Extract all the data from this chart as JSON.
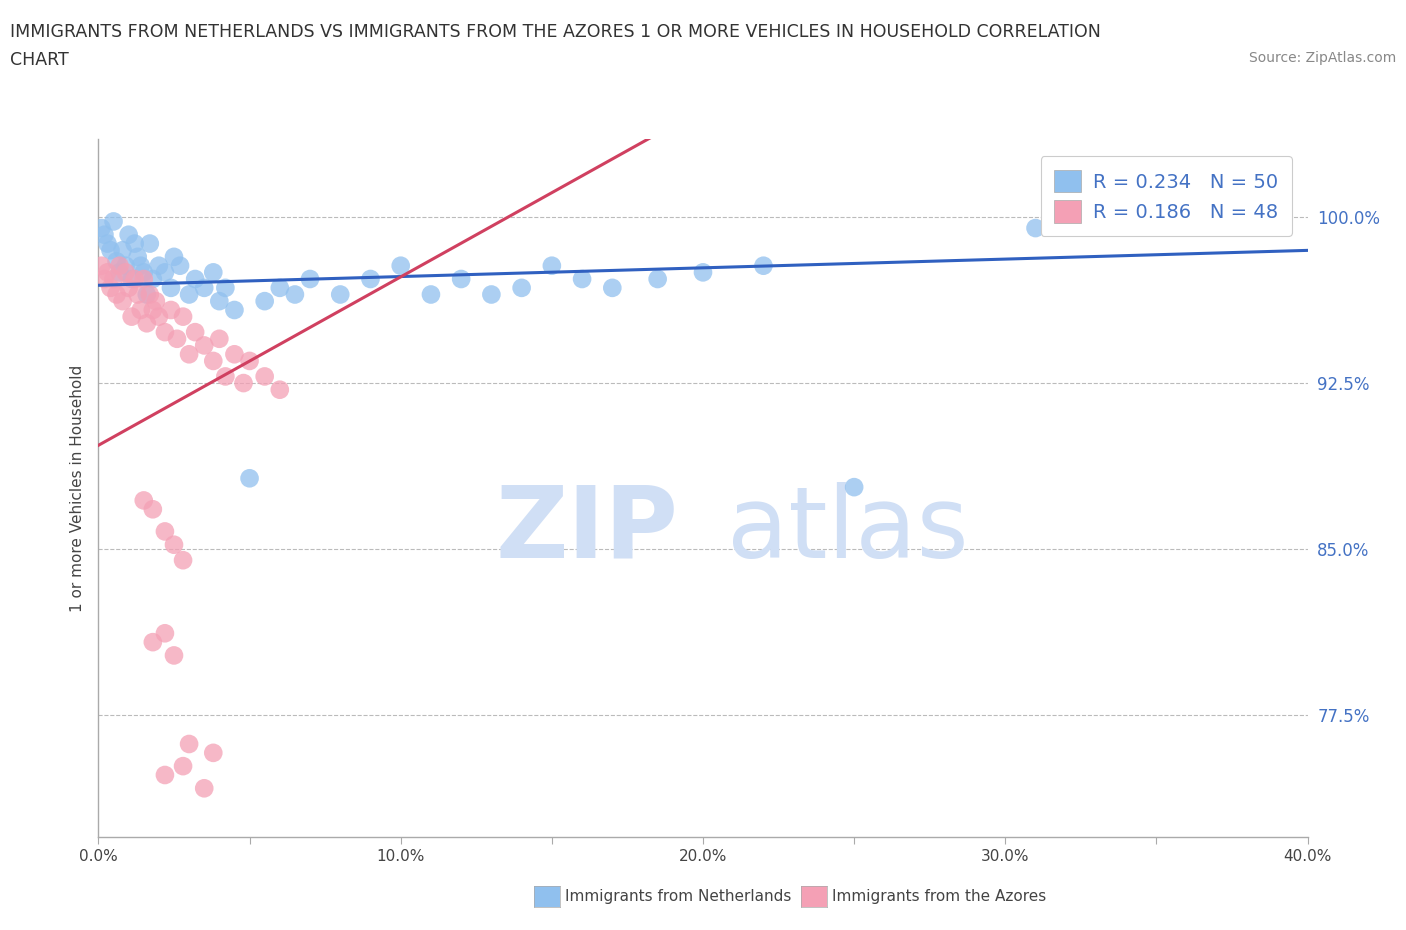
{
  "title_line1": "IMMIGRANTS FROM NETHERLANDS VS IMMIGRANTS FROM THE AZORES 1 OR MORE VEHICLES IN HOUSEHOLD CORRELATION",
  "title_line2": "CHART",
  "source_text": "Source: ZipAtlas.com",
  "ylabel": "1 or more Vehicles in Household",
  "xlim": [
    0.0,
    0.4
  ],
  "ylim": [
    0.72,
    1.035
  ],
  "yticks_right": [
    1.0,
    0.925,
    0.85,
    0.775
  ],
  "ytick_labels_right": [
    "100.0%",
    "92.5%",
    "85.0%",
    "77.5%"
  ],
  "xticks": [
    0.0,
    0.05,
    0.1,
    0.15,
    0.2,
    0.25,
    0.3,
    0.35,
    0.4
  ],
  "xtick_labels": [
    "0.0%",
    "",
    "10.0%",
    "",
    "20.0%",
    "",
    "30.0%",
    "",
    "40.0%"
  ],
  "color_netherlands": "#90C0EE",
  "color_azores": "#F4A0B5",
  "color_trendline_netherlands": "#3060C0",
  "color_trendline_azores": "#D04060",
  "watermark_zip": "ZIP",
  "watermark_atlas": "atlas",
  "watermark_color": "#D0DFF5",
  "legend_label_netherlands": "Immigrants from Netherlands",
  "legend_label_azores": "Immigrants from the Azores",
  "R_netherlands": 0.234,
  "N_netherlands": 50,
  "R_azores": 0.186,
  "N_azores": 48,
  "nl_x": [
    0.001,
    0.002,
    0.003,
    0.004,
    0.005,
    0.006,
    0.007,
    0.008,
    0.009,
    0.01,
    0.011,
    0.012,
    0.013,
    0.014,
    0.015,
    0.016,
    0.017,
    0.018,
    0.02,
    0.022,
    0.024,
    0.025,
    0.027,
    0.03,
    0.032,
    0.035,
    0.038,
    0.04,
    0.042,
    0.045,
    0.05,
    0.055,
    0.06,
    0.065,
    0.07,
    0.08,
    0.09,
    0.1,
    0.11,
    0.12,
    0.13,
    0.14,
    0.15,
    0.16,
    0.17,
    0.185,
    0.2,
    0.22,
    0.25,
    0.31
  ],
  "nl_y": [
    0.995,
    0.992,
    0.988,
    0.985,
    0.998,
    0.98,
    0.975,
    0.985,
    0.978,
    0.992,
    0.972,
    0.988,
    0.982,
    0.978,
    0.975,
    0.965,
    0.988,
    0.972,
    0.978,
    0.975,
    0.968,
    0.982,
    0.978,
    0.965,
    0.972,
    0.968,
    0.975,
    0.962,
    0.968,
    0.958,
    0.882,
    0.962,
    0.968,
    0.965,
    0.972,
    0.965,
    0.972,
    0.978,
    0.965,
    0.972,
    0.965,
    0.968,
    0.978,
    0.972,
    0.968,
    0.972,
    0.975,
    0.978,
    0.878,
    0.995
  ],
  "az_x": [
    0.001,
    0.002,
    0.003,
    0.004,
    0.005,
    0.006,
    0.007,
    0.008,
    0.009,
    0.01,
    0.011,
    0.012,
    0.013,
    0.014,
    0.015,
    0.016,
    0.017,
    0.018,
    0.019,
    0.02,
    0.022,
    0.024,
    0.026,
    0.028,
    0.03,
    0.032,
    0.035,
    0.038,
    0.04,
    0.042,
    0.045,
    0.048,
    0.05,
    0.055,
    0.06,
    0.015,
    0.018,
    0.022,
    0.025,
    0.028,
    0.018,
    0.022,
    0.025,
    0.03,
    0.038,
    0.022,
    0.028,
    0.035
  ],
  "az_y": [
    0.978,
    0.972,
    0.975,
    0.968,
    0.972,
    0.965,
    0.978,
    0.962,
    0.975,
    0.968,
    0.955,
    0.972,
    0.965,
    0.958,
    0.972,
    0.952,
    0.965,
    0.958,
    0.962,
    0.955,
    0.948,
    0.958,
    0.945,
    0.955,
    0.938,
    0.948,
    0.942,
    0.935,
    0.945,
    0.928,
    0.938,
    0.925,
    0.935,
    0.928,
    0.922,
    0.872,
    0.868,
    0.858,
    0.852,
    0.845,
    0.808,
    0.812,
    0.802,
    0.762,
    0.758,
    0.748,
    0.752,
    0.742
  ]
}
